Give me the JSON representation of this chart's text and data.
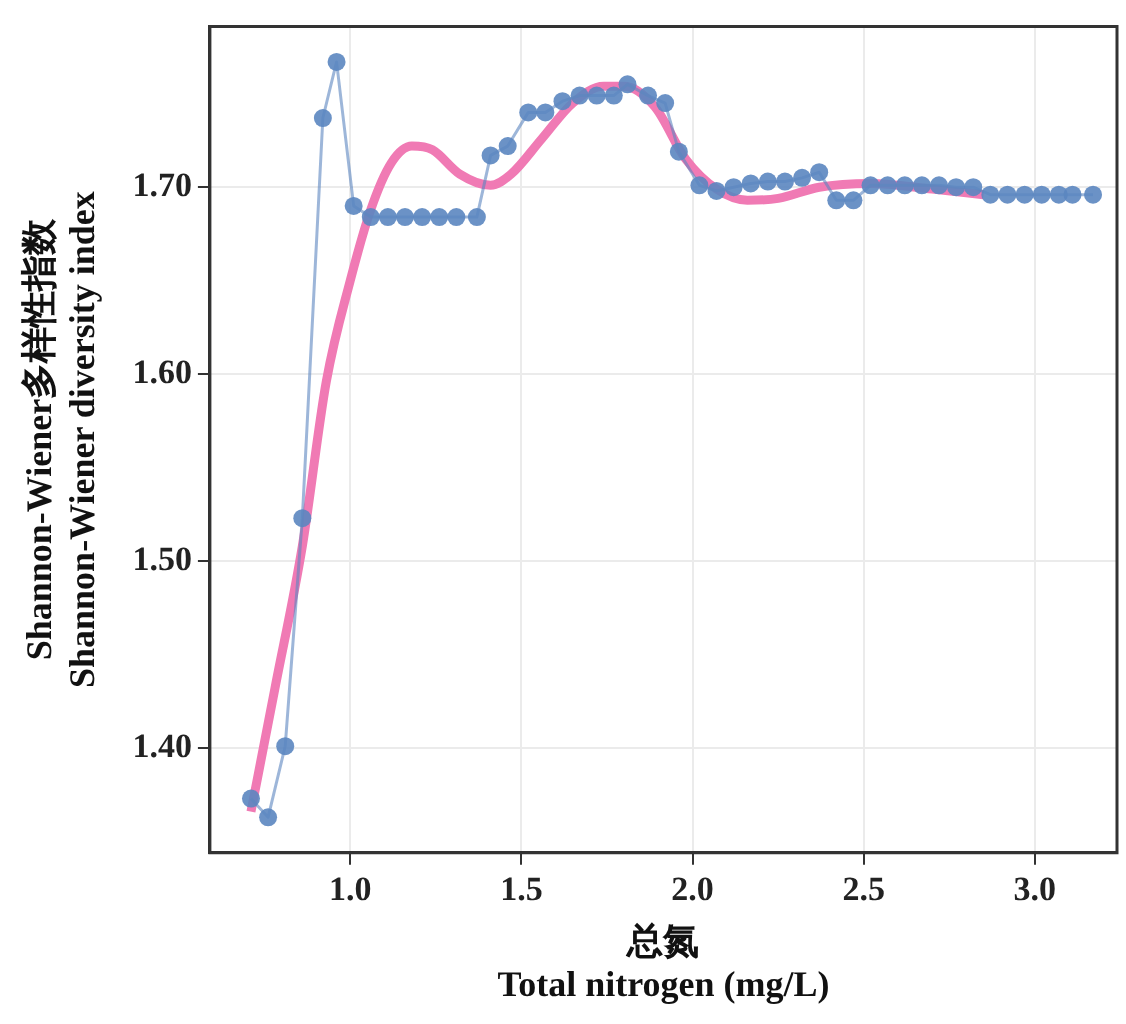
{
  "chart_data": {
    "type": "line",
    "xlabel": "总氮\nTotal nitrogen (mg/L)",
    "ylabel": "Shannon-Wiener多样性指数\nShannon-Wiener diversity index",
    "xlim": [
      0.59,
      3.24
    ],
    "xticks": [
      {
        "value": 1,
        "label": "1.0"
      },
      {
        "value": 1.5,
        "label": "1.5"
      },
      {
        "value": 2,
        "label": "2.0"
      },
      {
        "value": 2.5,
        "label": "2.5"
      },
      {
        "value": 3,
        "label": "3.0"
      }
    ],
    "ylim": [
      1.344,
      1.786
    ],
    "yticks": [
      {
        "value": 1.4,
        "label": "1.40"
      },
      {
        "value": 1.5,
        "label": "1.50"
      },
      {
        "value": 1.6,
        "label": "1.60"
      },
      {
        "value": 1.7,
        "label": "1.70"
      }
    ],
    "grid": true,
    "legend": false,
    "series": [
      {
        "color": "#f07ab4",
        "marker": "none",
        "line_style": "solid",
        "x": [
          0.71,
          0.78,
          0.86,
          0.93,
          1.0,
          1.06,
          1.12,
          1.18,
          1.24,
          1.32,
          1.41,
          1.47,
          1.56,
          1.65,
          1.74,
          1.8,
          1.89,
          1.98,
          2.07,
          2.16,
          2.25,
          2.37,
          2.52,
          2.7,
          2.85
        ],
        "values": [
          1.366,
          1.432,
          1.508,
          1.596,
          1.65,
          1.688,
          1.713,
          1.722,
          1.72,
          1.707,
          1.701,
          1.707,
          1.726,
          1.745,
          1.754,
          1.754,
          1.743,
          1.715,
          1.699,
          1.693,
          1.694,
          1.7,
          1.702,
          1.699,
          1.696
        ]
      },
      {
        "color": "#5b86c0",
        "marker": "circle",
        "line_style": "solid",
        "x": [
          0.71,
          0.76,
          0.81,
          0.86,
          0.92,
          0.96,
          1.01,
          1.06,
          1.11,
          1.16,
          1.21,
          1.26,
          1.31,
          1.37,
          1.41,
          1.46,
          1.52,
          1.57,
          1.62,
          1.67,
          1.72,
          1.77,
          1.81,
          1.87,
          1.92,
          1.96,
          2.02,
          2.07,
          2.12,
          2.17,
          2.22,
          2.27,
          2.32,
          2.37,
          2.42,
          2.47,
          2.52,
          2.57,
          2.62,
          2.67,
          2.72,
          2.77,
          2.82,
          2.87,
          2.92,
          2.97,
          3.02,
          3.07,
          3.11,
          3.17
        ],
        "values": [
          1.373,
          1.363,
          1.401,
          1.523,
          1.737,
          1.767,
          1.69,
          1.684,
          1.684,
          1.684,
          1.684,
          1.684,
          1.684,
          1.684,
          1.717,
          1.722,
          1.74,
          1.74,
          1.746,
          1.749,
          1.749,
          1.749,
          1.755,
          1.749,
          1.745,
          1.719,
          1.701,
          1.698,
          1.7,
          1.702,
          1.703,
          1.703,
          1.705,
          1.708,
          1.693,
          1.693,
          1.701,
          1.701,
          1.701,
          1.701,
          1.701,
          1.7,
          1.7,
          1.696,
          1.696,
          1.696,
          1.696,
          1.696,
          1.696,
          1.696
        ]
      }
    ]
  }
}
